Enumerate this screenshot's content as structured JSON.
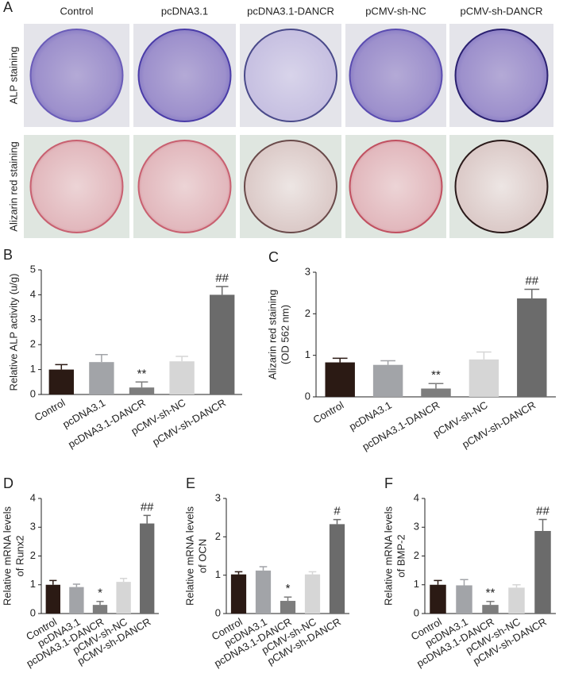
{
  "panel_a": {
    "label": "A",
    "columns": [
      "Control",
      "pcDNA3.1",
      "pcDNA3.1-DANCR",
      "pCMV-sh-NC",
      "pCMV-sh-DANCR"
    ],
    "rows": [
      "ALP staining",
      "Alizarin red staining"
    ]
  },
  "chart_data": [
    {
      "type": "bar",
      "panel_label": "B",
      "ylabel": [
        "Relative ALP activity (u/g)"
      ],
      "categories": [
        "Control",
        "pcDNA3.1",
        "pcDNA3.1-DANCR",
        "pCMV-sh-NC",
        "pCMV-sh-DANCR"
      ],
      "values": [
        1.0,
        1.3,
        0.28,
        1.33,
        4.0
      ],
      "errors": [
        0.2,
        0.3,
        0.22,
        0.2,
        0.33
      ],
      "annotations": [
        null,
        null,
        "**",
        null,
        "##"
      ],
      "colors": [
        "#2b1a14",
        "#a2a4a8",
        "#7d7d7d",
        "#d6d6d6",
        "#6b6b6b"
      ],
      "ylim": [
        0,
        5
      ],
      "yticks": [
        0,
        1,
        2,
        3,
        4,
        5
      ]
    },
    {
      "type": "bar",
      "panel_label": "C",
      "ylabel": [
        "Alizarin red staining",
        "(OD 562 nm)"
      ],
      "categories": [
        "Control",
        "pcDNA3.1",
        "pcDNA3.1-DANCR",
        "pCMV-sh-NC",
        "pCMV-sh-DANCR"
      ],
      "values": [
        0.83,
        0.77,
        0.2,
        0.9,
        2.37
      ],
      "errors": [
        0.1,
        0.1,
        0.12,
        0.18,
        0.22
      ],
      "annotations": [
        null,
        null,
        "**",
        null,
        "##"
      ],
      "colors": [
        "#2b1a14",
        "#a2a4a8",
        "#7d7d7d",
        "#d6d6d6",
        "#6b6b6b"
      ],
      "ylim": [
        0,
        3
      ],
      "yticks": [
        0,
        1,
        2,
        3
      ]
    },
    {
      "type": "bar",
      "panel_label": "D",
      "ylabel": [
        "Relative mRNA levels",
        "of Runx2"
      ],
      "categories": [
        "Control",
        "pcDNA3.1",
        "pcDNA3.1-DANCR",
        "pCMV-sh-NC",
        "pCMV-sh-DANCR"
      ],
      "values": [
        1.0,
        0.92,
        0.3,
        1.1,
        3.13
      ],
      "errors": [
        0.15,
        0.1,
        0.12,
        0.12,
        0.28
      ],
      "annotations": [
        null,
        null,
        "*",
        null,
        "##"
      ],
      "colors": [
        "#2b1a14",
        "#a2a4a8",
        "#7d7d7d",
        "#d6d6d6",
        "#6b6b6b"
      ],
      "ylim": [
        0,
        4
      ],
      "yticks": [
        0,
        1,
        2,
        3,
        4
      ]
    },
    {
      "type": "bar",
      "panel_label": "E",
      "ylabel": [
        "Relative mRNA levels",
        "of OCN"
      ],
      "categories": [
        "Control",
        "pcDNA3.1",
        "pcDNA3.1-DANCR",
        "pCMV-sh-NC",
        "pCMV-sh-DANCR"
      ],
      "values": [
        1.02,
        1.12,
        0.33,
        1.02,
        2.33
      ],
      "errors": [
        0.07,
        0.1,
        0.1,
        0.07,
        0.12
      ],
      "annotations": [
        null,
        null,
        "*",
        null,
        "#"
      ],
      "colors": [
        "#2b1a14",
        "#a2a4a8",
        "#7d7d7d",
        "#d6d6d6",
        "#6b6b6b"
      ],
      "ylim": [
        0,
        3
      ],
      "yticks": [
        0,
        1,
        2,
        3
      ]
    },
    {
      "type": "bar",
      "panel_label": "F",
      "ylabel": [
        "Relative mRNA levels",
        "of BMP-2"
      ],
      "categories": [
        "Control",
        "pcDNA3.1",
        "pcDNA3.1-DANCR",
        "pCMV-sh-NC",
        "pCMV-sh-DANCR"
      ],
      "values": [
        1.0,
        0.98,
        0.3,
        0.9,
        2.87
      ],
      "errors": [
        0.15,
        0.2,
        0.12,
        0.1,
        0.4
      ],
      "annotations": [
        null,
        null,
        "**",
        null,
        "##"
      ],
      "colors": [
        "#2b1a14",
        "#a2a4a8",
        "#7d7d7d",
        "#d6d6d6",
        "#6b6b6b"
      ],
      "ylim": [
        0,
        4
      ],
      "yticks": [
        0,
        1,
        2,
        3,
        4
      ]
    }
  ]
}
